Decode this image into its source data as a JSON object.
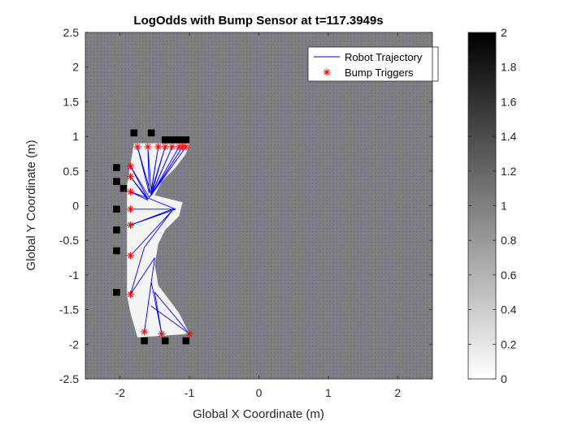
{
  "chart_data": {
    "type": "heatmap",
    "title": "LogOdds with Bump Sensor at t=117.3949s",
    "xlabel": "Global X Coordinate (m)",
    "ylabel": "Global Y Coordinate (m)",
    "xlim": [
      -2.5,
      2.5
    ],
    "ylim": [
      -2.5,
      2.5
    ],
    "xticks": [
      -2,
      -1,
      0,
      1,
      2
    ],
    "xtick_labels": [
      "-2",
      "-1",
      "0",
      "1",
      "2"
    ],
    "yticks": [
      -2.5,
      -2,
      -1.5,
      -1,
      -0.5,
      0,
      0.5,
      1,
      1.5,
      2,
      2.5
    ],
    "ytick_labels": [
      "-2.5",
      "-2",
      "-1.5",
      "-1",
      "-0.5",
      "0",
      "0.5",
      "1",
      "1.5",
      "2",
      "2.5"
    ],
    "grid_resolution_m": 0.1,
    "background_logodds": 1,
    "colormap": "gray (0 = white, 2 = black)",
    "colorbar": {
      "limits": [
        0,
        2
      ],
      "ticks": [
        0,
        0.2,
        0.4,
        0.6,
        0.8,
        1,
        1.2,
        1.4,
        1.6,
        1.8,
        2
      ],
      "tick_labels": [
        "0",
        "0.2",
        "0.4",
        "0.6",
        "0.8",
        "1",
        "1.2",
        "1.4",
        "1.6",
        "1.8",
        "2"
      ]
    },
    "occupied_cells": [
      [
        -1.8,
        1.05
      ],
      [
        -1.55,
        1.05
      ],
      [
        -1.35,
        0.95
      ],
      [
        -1.25,
        0.95
      ],
      [
        -1.15,
        0.95
      ],
      [
        -1.05,
        0.95
      ],
      [
        -2.05,
        0.55
      ],
      [
        -2.05,
        0.35
      ],
      [
        -1.95,
        0.25
      ],
      [
        -2.05,
        -0.05
      ],
      [
        -2.05,
        -0.35
      ],
      [
        -2.05,
        -0.65
      ],
      [
        -2.05,
        -1.25
      ],
      [
        -1.65,
        -1.95
      ],
      [
        -1.35,
        -1.95
      ],
      [
        -1.05,
        -1.95
      ]
    ],
    "free_polygon": [
      [
        -1.8,
        0.9
      ],
      [
        -1.0,
        0.9
      ],
      [
        -1.05,
        0.75
      ],
      [
        -1.2,
        0.55
      ],
      [
        -1.4,
        0.35
      ],
      [
        -1.5,
        0.15
      ],
      [
        -1.1,
        0.05
      ],
      [
        -1.15,
        -0.15
      ],
      [
        -1.35,
        -0.35
      ],
      [
        -1.45,
        -0.55
      ],
      [
        -1.5,
        -0.85
      ],
      [
        -1.45,
        -1.15
      ],
      [
        -1.3,
        -1.35
      ],
      [
        -1.15,
        -1.55
      ],
      [
        -1.05,
        -1.75
      ],
      [
        -1.0,
        -1.85
      ],
      [
        -1.75,
        -1.9
      ],
      [
        -1.85,
        -1.55
      ],
      [
        -1.9,
        -1.3
      ],
      [
        -1.9,
        -0.75
      ],
      [
        -1.9,
        -0.3
      ],
      [
        -1.9,
        0.0
      ],
      [
        -1.9,
        0.3
      ],
      [
        -1.85,
        0.6
      ]
    ],
    "series": [
      {
        "name": "Robot Trajectory",
        "style": "line",
        "color": "#0000ff",
        "points": [
          [
            -1.55,
            0.15
          ],
          [
            -1.75,
            0.85
          ],
          [
            -1.58,
            0.18
          ],
          [
            -1.6,
            0.85
          ],
          [
            -1.55,
            0.2
          ],
          [
            -1.45,
            0.85
          ],
          [
            -1.56,
            0.17
          ],
          [
            -1.35,
            0.85
          ],
          [
            -1.55,
            0.16
          ],
          [
            -1.25,
            0.85
          ],
          [
            -1.55,
            0.15
          ],
          [
            -1.15,
            0.85
          ],
          [
            -1.55,
            0.15
          ],
          [
            -1.1,
            0.85
          ],
          [
            -1.56,
            0.14
          ],
          [
            -1.05,
            0.85
          ],
          [
            -1.58,
            0.12
          ],
          [
            -1.85,
            0.57
          ],
          [
            -1.6,
            0.1
          ],
          [
            -1.85,
            0.42
          ],
          [
            -1.6,
            0.08
          ],
          [
            -1.85,
            0.2
          ],
          [
            -1.57,
            0.1
          ],
          [
            -1.2,
            -0.05
          ],
          [
            -1.85,
            -0.05
          ],
          [
            -1.2,
            -0.05
          ],
          [
            -1.85,
            -0.28
          ],
          [
            -1.22,
            -0.04
          ],
          [
            -1.85,
            -0.72
          ],
          [
            -1.25,
            -0.07
          ],
          [
            -1.65,
            -0.6
          ],
          [
            -1.85,
            -1.28
          ],
          [
            -1.5,
            -0.75
          ],
          [
            -1.65,
            -1.82
          ],
          [
            -1.55,
            -1.1
          ],
          [
            -1.4,
            -1.85
          ],
          [
            -1.5,
            -1.25
          ],
          [
            -1.0,
            -1.85
          ],
          [
            -1.55,
            -1.45
          ]
        ]
      },
      {
        "name": "Bump Triggers",
        "style": "marker",
        "marker": "asterisk",
        "color": "#ff0000",
        "points": [
          [
            -1.75,
            0.85
          ],
          [
            -1.6,
            0.85
          ],
          [
            -1.45,
            0.85
          ],
          [
            -1.35,
            0.85
          ],
          [
            -1.25,
            0.85
          ],
          [
            -1.15,
            0.85
          ],
          [
            -1.1,
            0.85
          ],
          [
            -1.05,
            0.85
          ],
          [
            -1.85,
            0.57
          ],
          [
            -1.85,
            0.42
          ],
          [
            -1.85,
            0.2
          ],
          [
            -1.85,
            -0.05
          ],
          [
            -1.85,
            -0.28
          ],
          [
            -1.85,
            -0.72
          ],
          [
            -1.85,
            -1.28
          ],
          [
            -1.65,
            -1.82
          ],
          [
            -1.4,
            -1.85
          ],
          [
            -1.0,
            -1.85
          ]
        ]
      }
    ],
    "legend": {
      "position": "top-right",
      "entries": [
        "Robot Trajectory",
        "Bump Triggers"
      ]
    }
  }
}
